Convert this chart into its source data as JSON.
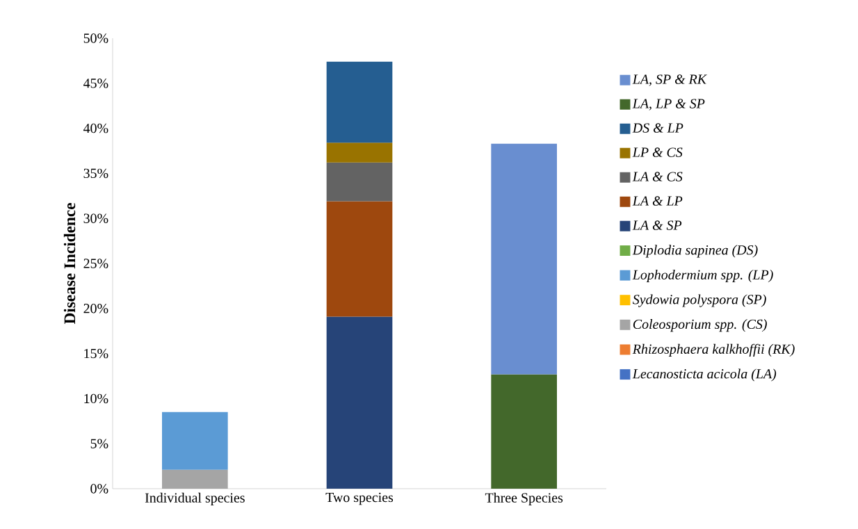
{
  "chart_data": {
    "type": "bar",
    "stacked": true,
    "ylabel": "Disease Incidence",
    "categories": [
      "Individual species",
      "Two species",
      "Three Species"
    ],
    "ylim": [
      0,
      50
    ],
    "yticks": [
      {
        "value": 0,
        "label": "0%"
      },
      {
        "value": 5,
        "label": "5%"
      },
      {
        "value": 10,
        "label": "10%"
      },
      {
        "value": 15,
        "label": "15%"
      },
      {
        "value": 20,
        "label": "20%"
      },
      {
        "value": 25,
        "label": "25%"
      },
      {
        "value": 30,
        "label": "30%"
      },
      {
        "value": 35,
        "label": "35%"
      },
      {
        "value": 40,
        "label": "40%"
      },
      {
        "value": 45,
        "label": "45%"
      },
      {
        "value": 50,
        "label": "50%"
      }
    ],
    "legend": "right",
    "series": [
      {
        "name": "*Lecanosticta acicola (LA)*",
        "color": "#4472c4",
        "values": [
          null,
          null,
          null
        ]
      },
      {
        "name": "*Rhizosphaera kalkhoffii (RK)*",
        "color": "#ed7d31",
        "values": [
          null,
          null,
          null
        ]
      },
      {
        "name": "*Coleosporium spp. (CS)*",
        "color": "#a5a5a5",
        "values": [
          2.1,
          null,
          null
        ]
      },
      {
        "name": "*Sydowia polyspora (SP)*",
        "color": "#ffc000",
        "values": [
          null,
          null,
          null
        ]
      },
      {
        "name": "*Lophodermium spp. (LP)*",
        "color": "#5b9bd5",
        "values": [
          6.4,
          null,
          null
        ]
      },
      {
        "name": "*Diplodia sapinea (DS)*",
        "color": "#70ad47",
        "values": [
          null,
          null,
          null
        ]
      },
      {
        "name": "*LA & SP*",
        "color": "#264478",
        "values": [
          null,
          19.1,
          null
        ]
      },
      {
        "name": "*LA & LP*",
        "color": "#9e480e",
        "values": [
          null,
          12.8,
          null
        ]
      },
      {
        "name": "*LA & CS*",
        "color": "#636363",
        "values": [
          null,
          4.3,
          null
        ]
      },
      {
        "name": "*LP & CS*",
        "color": "#997300",
        "values": [
          null,
          2.2,
          null
        ]
      },
      {
        "name": "*DS & LP*",
        "color": "#255e91",
        "values": [
          null,
          9.0,
          null
        ]
      },
      {
        "name": "*LA, LP & SP*",
        "color": "#43682b",
        "values": [
          null,
          null,
          12.7
        ]
      },
      {
        "name": "*LA, SP & RK*",
        "color": "#698ed0",
        "values": [
          null,
          null,
          25.6
        ]
      }
    ]
  }
}
